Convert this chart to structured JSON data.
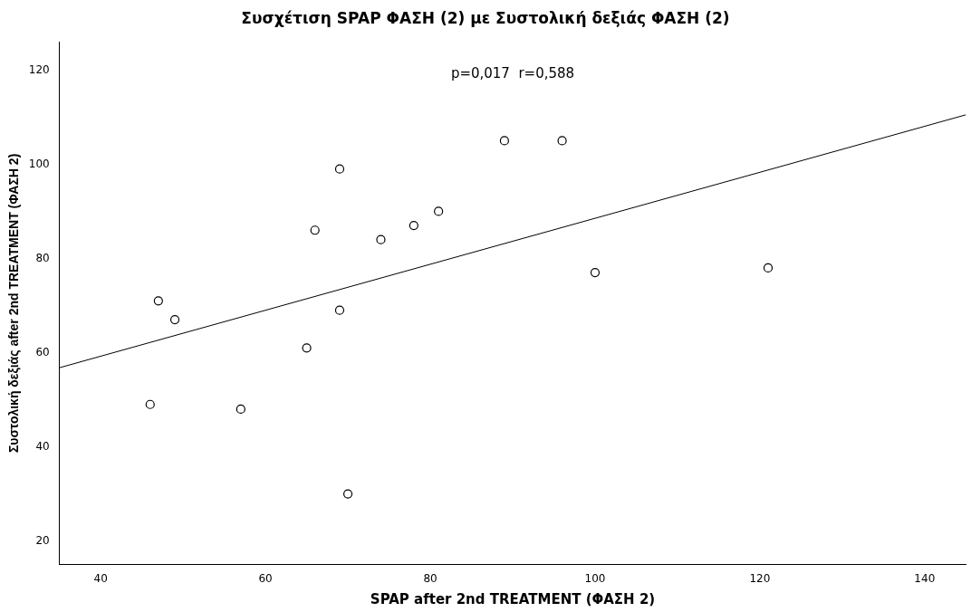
{
  "chart_data": {
    "type": "scatter",
    "title": "Συσχέτιση SPAP ΦΑΣΗ (2) με Συστολική δεξιάς ΦΑΣΗ (2)",
    "xlabel": "SPAP after 2nd TREATMENT (ΦΑΣΗ 2)",
    "ylabel": "Συστολική δεξιάς after 2nd TREATMENT (ΦΑΣΗ 2)",
    "annotations": [
      "p=0,017  r=0,588"
    ],
    "xlim": [
      35,
      145
    ],
    "xticks": [
      40,
      60,
      80,
      100,
      120,
      140
    ],
    "ylim": [
      15,
      126
    ],
    "yticks": [
      20,
      40,
      60,
      80,
      100,
      120
    ],
    "grid": false,
    "legend": false,
    "series": [
      {
        "marker": "circle",
        "color": "#000000",
        "x": [
          46,
          47,
          49,
          57,
          65,
          66,
          69,
          69,
          70,
          74,
          78,
          81,
          89,
          96,
          100,
          121
        ],
        "values": [
          49,
          71,
          67,
          48,
          61,
          86,
          99,
          69,
          30,
          84,
          87,
          90,
          105,
          105,
          77,
          78
        ]
      },
      {
        "type": "line",
        "marker": "none",
        "color": "#000000",
        "x": [
          35,
          145
        ],
        "values": [
          56.8,
          110.5
        ]
      }
    ]
  }
}
